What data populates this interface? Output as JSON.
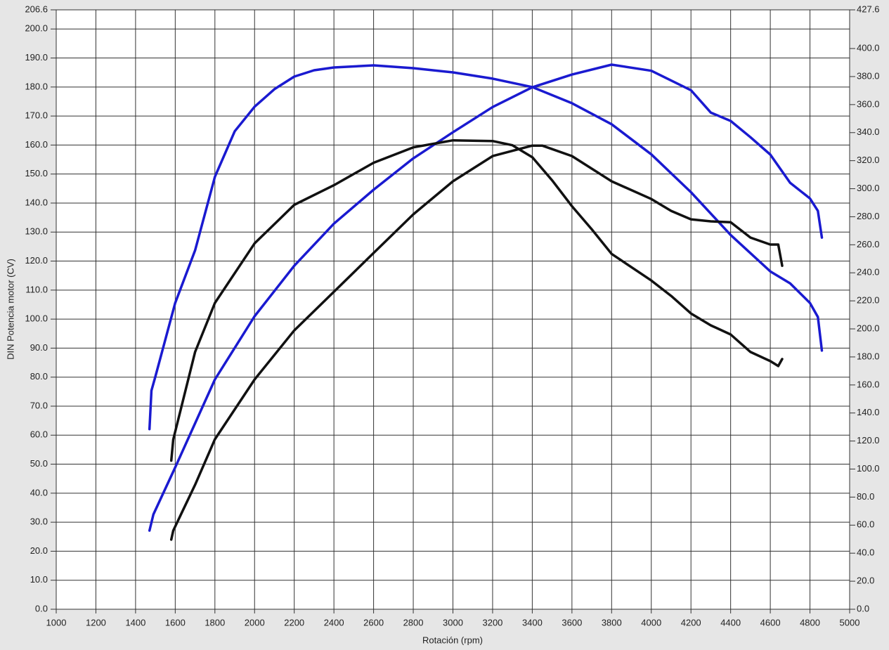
{
  "chart_data": {
    "type": "line",
    "y_label": "DIN Potencia motor (CV)",
    "x_label": "Rotación (rpm)",
    "xlim": [
      1000,
      5000
    ],
    "xticks": [
      1000,
      1200,
      1400,
      1600,
      1800,
      2000,
      2200,
      2400,
      2600,
      2800,
      3000,
      3200,
      3400,
      3600,
      3800,
      4000,
      4200,
      4400,
      4600,
      4800,
      5000
    ],
    "ylim": [
      0,
      206.6
    ],
    "yticks": [
      {
        "value": 0,
        "label": "0.0"
      },
      {
        "value": 10,
        "label": "10.0"
      },
      {
        "value": 20,
        "label": "20.0"
      },
      {
        "value": 30,
        "label": "30.0"
      },
      {
        "value": 40,
        "label": "40.0"
      },
      {
        "value": 50,
        "label": "50.0"
      },
      {
        "value": 60,
        "label": "60.0"
      },
      {
        "value": 70,
        "label": "70.0"
      },
      {
        "value": 80,
        "label": "80.0"
      },
      {
        "value": 90,
        "label": "90.0"
      },
      {
        "value": 100,
        "label": "100.0"
      },
      {
        "value": 110,
        "label": "110.0"
      },
      {
        "value": 120,
        "label": "120.0"
      },
      {
        "value": 130,
        "label": "130.0"
      },
      {
        "value": 140,
        "label": "140.0"
      },
      {
        "value": 150,
        "label": "150.0"
      },
      {
        "value": 160,
        "label": "160.0"
      },
      {
        "value": 170,
        "label": "170.0"
      },
      {
        "value": 180,
        "label": "180.0"
      },
      {
        "value": 190,
        "label": "190.0"
      },
      {
        "value": 200,
        "label": "200.0"
      },
      206.6
    ],
    "y2lim": [
      0,
      427.6
    ],
    "y2ticks": [
      {
        "value": 0,
        "label": "0.0"
      },
      {
        "value": 20,
        "label": "20.0"
      },
      {
        "value": 40,
        "label": "40.0"
      },
      {
        "value": 60,
        "label": "60.0"
      },
      {
        "value": 80,
        "label": "80.0"
      },
      {
        "value": 100,
        "label": "100.0"
      },
      {
        "value": 120,
        "label": "120.0"
      },
      {
        "value": 140,
        "label": "140.0"
      },
      {
        "value": 160,
        "label": "160.0"
      },
      {
        "value": 180,
        "label": "180.0"
      },
      {
        "value": 200,
        "label": "200.0"
      },
      {
        "value": 220,
        "label": "220.0"
      },
      {
        "value": 240,
        "label": "240.0"
      },
      {
        "value": 260,
        "label": "260.0"
      },
      {
        "value": 280,
        "label": "280.0"
      },
      {
        "value": 300,
        "label": "300.0"
      },
      {
        "value": 320,
        "label": "320.0"
      },
      {
        "value": 340,
        "label": "340.0"
      },
      {
        "value": 360,
        "label": "360.0"
      },
      {
        "value": 380,
        "label": "380.0"
      },
      {
        "value": 400,
        "label": "400.0"
      },
      427.6
    ],
    "grid": true,
    "series": [
      {
        "color": "#1a1ad0",
        "axis": "y2",
        "x": [
          1470,
          1480,
          1500,
          1600,
          1700,
          1800,
          1900,
          2000,
          2100,
          2200,
          2300,
          2400,
          2600,
          2800,
          3000,
          3200,
          3400,
          3600,
          3800,
          4000,
          4200,
          4400,
          4600,
          4700,
          4800,
          4840,
          4860
        ],
        "values": [
          128.5,
          156,
          166,
          218.5,
          256,
          308.5,
          341,
          358.5,
          371,
          380,
          384.5,
          386.5,
          388,
          386,
          383,
          378.5,
          372.5,
          361,
          346,
          324.5,
          297.5,
          267,
          241,
          232.5,
          218.5,
          208.5,
          184.5
        ]
      },
      {
        "color": "#1a1ad0",
        "x": [
          1470,
          1490,
          1600,
          1800,
          2000,
          2200,
          2400,
          2600,
          2800,
          3000,
          3200,
          3400,
          3600,
          3800,
          4000,
          4200,
          4300,
          4400,
          4500,
          4600,
          4700,
          4800,
          4840,
          4860
        ],
        "values": [
          27.1,
          32.7,
          48.9,
          79.2,
          101,
          118.4,
          132.9,
          144.6,
          155.4,
          164.4,
          173.1,
          179.9,
          184.3,
          187.7,
          185.6,
          178.9,
          171.2,
          168.3,
          162.7,
          156.7,
          147,
          141.6,
          137.3,
          128.1
        ]
      },
      {
        "color": "#111111",
        "axis": "y2",
        "x": [
          1580,
          1590,
          1700,
          1800,
          2000,
          2200,
          2400,
          2600,
          2800,
          3000,
          3200,
          3300,
          3400,
          3500,
          3600,
          3700,
          3800,
          4000,
          4100,
          4200,
          4300,
          4400,
          4500,
          4600,
          4640,
          4660
        ],
        "values": [
          106,
          121,
          183.5,
          218.5,
          261,
          288.5,
          302.5,
          318.5,
          329.5,
          334.5,
          334,
          331,
          322.5,
          306,
          287.5,
          271,
          253.5,
          234.5,
          223.5,
          211,
          202.5,
          196,
          183.5,
          177,
          173.5,
          178.5
        ]
      },
      {
        "color": "#111111",
        "x": [
          1580,
          1590,
          1700,
          1800,
          2000,
          2200,
          2400,
          2600,
          2800,
          3000,
          3200,
          3400,
          3450,
          3600,
          3800,
          4000,
          4100,
          4200,
          4300,
          4400,
          4500,
          4600,
          4640,
          4660
        ],
        "values": [
          24,
          27.1,
          42.9,
          58.6,
          79.2,
          96.1,
          109.4,
          122.8,
          136.1,
          147.5,
          156.2,
          159.8,
          159.8,
          156.2,
          147.5,
          141.4,
          137.3,
          134.4,
          133.7,
          133.4,
          128.1,
          125.7,
          125.7,
          118.4
        ]
      }
    ]
  }
}
